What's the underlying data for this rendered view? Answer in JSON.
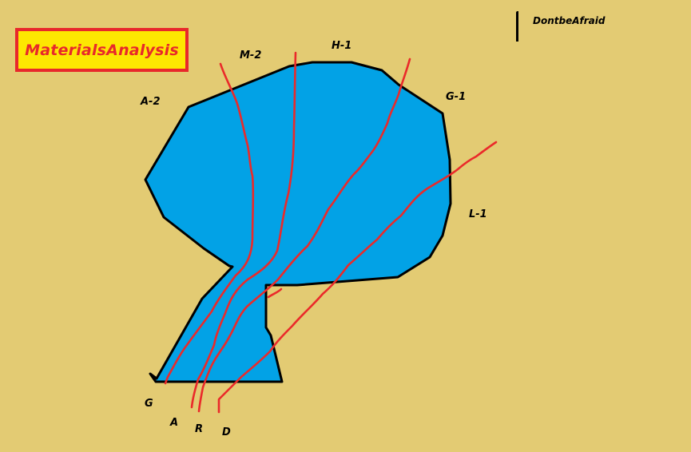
{
  "title": "MaterialsAnalysis",
  "watermark": "DontbeAfraid",
  "region_labels": {
    "a2": "A-2",
    "m2": "M-2",
    "h1": "H-1",
    "g1": "G-1",
    "l1": "L-1"
  },
  "line_labels": {
    "g": "G",
    "a": "A",
    "r": "R",
    "d": "D"
  },
  "colors": {
    "background": "#e3cb73",
    "shape_fill": "#02a2e6",
    "outline": "#000000",
    "lines": "#ea2a2a",
    "title_box_fill": "#fde701",
    "title_border": "#e8282b",
    "title_text": "#e8282b"
  }
}
